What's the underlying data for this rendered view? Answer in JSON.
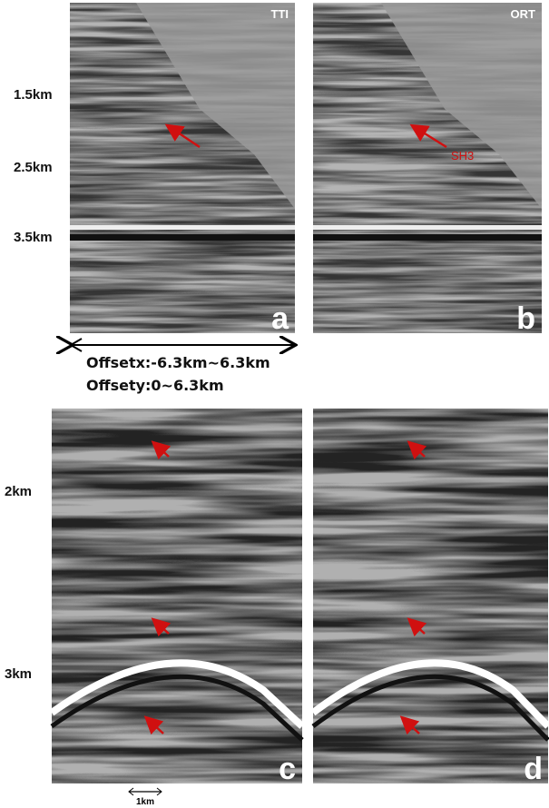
{
  "panels": [
    {
      "tag": "TTI",
      "label": "a"
    },
    {
      "tag": "ORT",
      "label": "b",
      "annotation": "SH3"
    },
    {
      "label": "c"
    },
    {
      "label": "d"
    }
  ],
  "top_depths": [
    "1.5km",
    "2.5km",
    "3.5km"
  ],
  "offsets": [
    "Offsetx:-6.3km~6.3km",
    "Offsety:0~6.3km"
  ],
  "bottom_depths": [
    "2km",
    "3km"
  ],
  "scale_bar": "1km"
}
